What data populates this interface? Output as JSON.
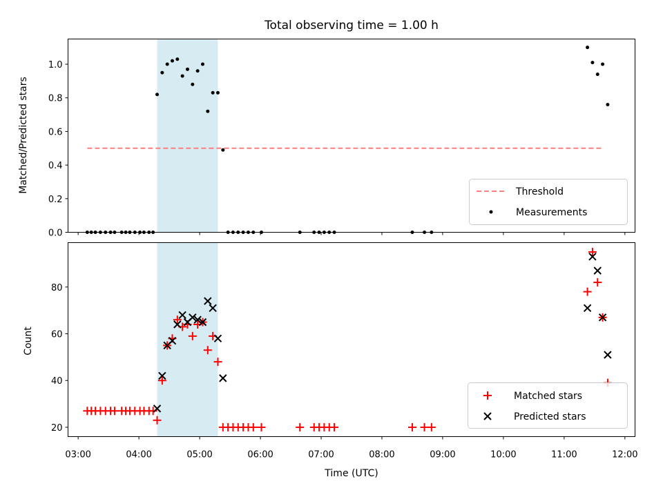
{
  "chart_data": {
    "title": "Total observing time = 1.00 h",
    "xlabel": "Time (UTC)",
    "xlim": [
      "02:50",
      "12:10"
    ],
    "xticks": [
      "03:00",
      "04:00",
      "05:00",
      "06:00",
      "07:00",
      "08:00",
      "09:00",
      "10:00",
      "11:00",
      "12:00"
    ],
    "window": {
      "start": "04:18",
      "end": "05:18",
      "color": "#add8e6"
    },
    "top": {
      "type": "scatter",
      "ylabel": "Matched/Predicted stars",
      "ylim": [
        0,
        1.15
      ],
      "yticks": [
        "0.0",
        "0.2",
        "0.4",
        "0.6",
        "0.8",
        "1.0"
      ],
      "threshold": {
        "label": "Threshold",
        "value": 0.5,
        "x_from": "03:09",
        "x_to": "11:39",
        "color": "#ff7f7f"
      },
      "measurements": {
        "label": "Measurements",
        "color": "#000000",
        "points": [
          [
            "03:09",
            0
          ],
          [
            "03:13",
            0
          ],
          [
            "03:17",
            0
          ],
          [
            "03:22",
            0
          ],
          [
            "03:27",
            0
          ],
          [
            "03:32",
            0
          ],
          [
            "03:36",
            0
          ],
          [
            "03:43",
            0
          ],
          [
            "03:47",
            0
          ],
          [
            "03:51",
            0
          ],
          [
            "03:56",
            0
          ],
          [
            "04:01",
            0
          ],
          [
            "04:05",
            0
          ],
          [
            "04:10",
            0
          ],
          [
            "04:14",
            0
          ],
          [
            "04:18",
            0.82
          ],
          [
            "04:23",
            0.95
          ],
          [
            "04:28",
            1.0
          ],
          [
            "04:33",
            1.02
          ],
          [
            "04:38",
            1.03
          ],
          [
            "04:43",
            0.93
          ],
          [
            "04:48",
            0.97
          ],
          [
            "04:53",
            0.88
          ],
          [
            "04:58",
            0.96
          ],
          [
            "05:03",
            1.0
          ],
          [
            "05:08",
            0.72
          ],
          [
            "05:13",
            0.83
          ],
          [
            "05:18",
            0.83
          ],
          [
            "05:23",
            0.49
          ],
          [
            "05:28",
            0
          ],
          [
            "05:33",
            0
          ],
          [
            "05:38",
            0
          ],
          [
            "05:43",
            0
          ],
          [
            "05:48",
            0
          ],
          [
            "05:53",
            0
          ],
          [
            "06:01",
            0
          ],
          [
            "06:39",
            0
          ],
          [
            "06:53",
            0
          ],
          [
            "06:58",
            0
          ],
          [
            "07:03",
            0
          ],
          [
            "07:08",
            0
          ],
          [
            "07:13",
            0
          ],
          [
            "08:30",
            0
          ],
          [
            "08:42",
            0
          ],
          [
            "08:49",
            0
          ],
          [
            "11:23",
            1.1
          ],
          [
            "11:28",
            1.01
          ],
          [
            "11:33",
            0.94
          ],
          [
            "11:38",
            1.0
          ],
          [
            "11:43",
            0.76
          ]
        ]
      },
      "legend": [
        "Threshold",
        "Measurements"
      ]
    },
    "bottom": {
      "type": "scatter",
      "ylabel": "Count",
      "ylim": [
        16,
        99
      ],
      "yticks": [
        "20",
        "40",
        "60",
        "80"
      ],
      "series": [
        {
          "name": "Matched stars",
          "marker": "+",
          "color": "#ff0000",
          "points": [
            [
              "03:09",
              27
            ],
            [
              "03:13",
              27
            ],
            [
              "03:17",
              27
            ],
            [
              "03:22",
              27
            ],
            [
              "03:27",
              27
            ],
            [
              "03:32",
              27
            ],
            [
              "03:36",
              27
            ],
            [
              "03:43",
              27
            ],
            [
              "03:47",
              27
            ],
            [
              "03:51",
              27
            ],
            [
              "03:56",
              27
            ],
            [
              "04:01",
              27
            ],
            [
              "04:05",
              27
            ],
            [
              "04:10",
              27
            ],
            [
              "04:14",
              27
            ],
            [
              "04:18",
              23
            ],
            [
              "04:23",
              40
            ],
            [
              "04:28",
              55
            ],
            [
              "04:33",
              58
            ],
            [
              "04:38",
              66
            ],
            [
              "04:43",
              63
            ],
            [
              "04:48",
              64
            ],
            [
              "04:53",
              59
            ],
            [
              "04:58",
              64
            ],
            [
              "05:03",
              65
            ],
            [
              "05:08",
              53
            ],
            [
              "05:13",
              59
            ],
            [
              "05:18",
              48
            ],
            [
              "05:23",
              20
            ],
            [
              "05:28",
              20
            ],
            [
              "05:33",
              20
            ],
            [
              "05:38",
              20
            ],
            [
              "05:43",
              20
            ],
            [
              "05:48",
              20
            ],
            [
              "05:53",
              20
            ],
            [
              "06:01",
              20
            ],
            [
              "06:39",
              20
            ],
            [
              "06:53",
              20
            ],
            [
              "06:58",
              20
            ],
            [
              "07:03",
              20
            ],
            [
              "07:08",
              20
            ],
            [
              "07:13",
              20
            ],
            [
              "08:30",
              20
            ],
            [
              "08:42",
              20
            ],
            [
              "08:49",
              20
            ],
            [
              "11:23",
              78
            ],
            [
              "11:28",
              95
            ],
            [
              "11:33",
              82
            ],
            [
              "11:38",
              67
            ],
            [
              "11:43",
              39
            ]
          ]
        },
        {
          "name": "Predicted stars",
          "marker": "x",
          "color": "#000000",
          "points": [
            [
              "04:18",
              28
            ],
            [
              "04:23",
              42
            ],
            [
              "04:28",
              55
            ],
            [
              "04:33",
              57
            ],
            [
              "04:38",
              64
            ],
            [
              "04:43",
              68
            ],
            [
              "04:48",
              65
            ],
            [
              "04:53",
              67
            ],
            [
              "04:58",
              66
            ],
            [
              "05:03",
              65
            ],
            [
              "05:08",
              74
            ],
            [
              "05:13",
              71
            ],
            [
              "05:18",
              58
            ],
            [
              "05:23",
              41
            ],
            [
              "11:23",
              71
            ],
            [
              "11:28",
              93
            ],
            [
              "11:33",
              87
            ],
            [
              "11:38",
              67
            ],
            [
              "11:43",
              51
            ]
          ]
        }
      ],
      "legend": [
        "Matched stars",
        "Predicted stars"
      ]
    }
  }
}
